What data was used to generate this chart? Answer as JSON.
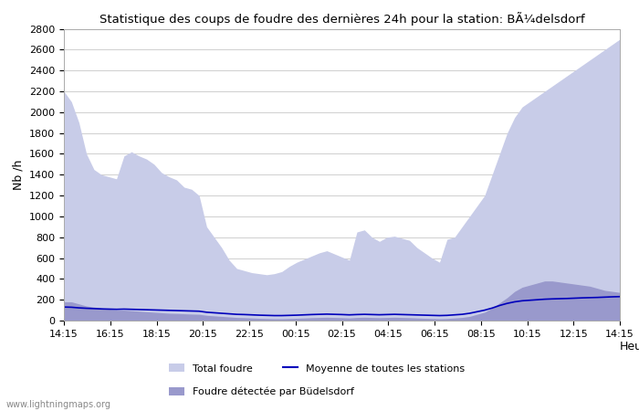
{
  "title": "Statistique des coups de foudre des dernières 24h pour la station: BÃ¼delsdorf",
  "xlabel": "Heure",
  "ylabel": "Nb /h",
  "background_color": "#ffffff",
  "plot_bg_color": "#ffffff",
  "grid_color": "#c8c8c8",
  "x_ticks": [
    "14:15",
    "16:15",
    "18:15",
    "20:15",
    "22:15",
    "00:15",
    "02:15",
    "04:15",
    "06:15",
    "08:15",
    "10:15",
    "12:15",
    "14:15"
  ],
  "ylim": [
    0,
    2800
  ],
  "yticks": [
    0,
    200,
    400,
    600,
    800,
    1000,
    1200,
    1400,
    1600,
    1800,
    2000,
    2200,
    2400,
    2600,
    2800
  ],
  "total_foudre_color": "#c8cce8",
  "local_foudre_color": "#9999cc",
  "mean_line_color": "#0000bb",
  "legend_items": [
    "Total foudre",
    "Moyenne de toutes les stations",
    "Foudre détectée par Büdelsdorf"
  ],
  "watermark": "www.lightningmaps.org",
  "total_foudre": [
    2200,
    2100,
    1900,
    1600,
    1450,
    1400,
    1380,
    1360,
    1580,
    1620,
    1580,
    1550,
    1500,
    1420,
    1380,
    1350,
    1280,
    1260,
    1200,
    900,
    800,
    700,
    580,
    500,
    480,
    460,
    450,
    440,
    450,
    470,
    520,
    560,
    590,
    620,
    650,
    670,
    640,
    610,
    580,
    850,
    870,
    800,
    760,
    800,
    810,
    790,
    770,
    700,
    650,
    600,
    560,
    780,
    800,
    900,
    1000,
    1100,
    1200,
    1400,
    1600,
    1800,
    1950,
    2050,
    2100,
    2150,
    2200,
    2250,
    2300,
    2350,
    2400,
    2450,
    2500,
    2550,
    2600,
    2650,
    2700
  ],
  "local_foudre": [
    180,
    180,
    160,
    140,
    130,
    120,
    110,
    100,
    100,
    95,
    90,
    85,
    80,
    75,
    70,
    68,
    65,
    62,
    60,
    50,
    45,
    40,
    35,
    30,
    28,
    25,
    22,
    20,
    18,
    18,
    20,
    22,
    25,
    28,
    30,
    32,
    30,
    28,
    25,
    30,
    32,
    30,
    28,
    30,
    32,
    30,
    28,
    25,
    22,
    20,
    18,
    20,
    25,
    30,
    40,
    60,
    80,
    120,
    170,
    220,
    280,
    320,
    340,
    360,
    380,
    380,
    370,
    360,
    350,
    340,
    330,
    310,
    290,
    280,
    270
  ],
  "mean_line": [
    130,
    128,
    122,
    118,
    115,
    112,
    110,
    108,
    110,
    108,
    106,
    104,
    102,
    100,
    98,
    96,
    94,
    92,
    90,
    80,
    75,
    70,
    65,
    60,
    58,
    55,
    52,
    50,
    48,
    48,
    50,
    52,
    55,
    58,
    60,
    62,
    60,
    58,
    55,
    58,
    60,
    58,
    56,
    58,
    60,
    58,
    56,
    54,
    52,
    50,
    48,
    50,
    55,
    60,
    70,
    85,
    100,
    120,
    145,
    165,
    180,
    190,
    195,
    200,
    205,
    208,
    210,
    212,
    215,
    218,
    220,
    222,
    225,
    228,
    230
  ]
}
